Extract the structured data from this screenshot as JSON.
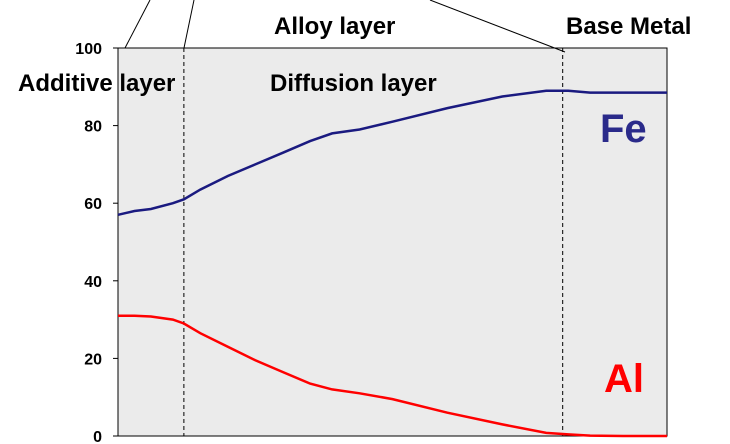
{
  "chart_data": {
    "type": "line",
    "title": "",
    "xlabel": "",
    "ylabel": "",
    "ylim": [
      0,
      100
    ],
    "xlim": [
      0,
      100
    ],
    "y_ticks": [
      "0",
      "20",
      "40",
      "60",
      "80",
      "100"
    ],
    "grid": false,
    "background": "#ebebeb",
    "series": [
      {
        "name": "Fe",
        "color": "#1a1a80",
        "x": [
          0,
          3,
          6,
          10,
          12,
          15,
          20,
          25,
          30,
          35,
          39,
          44,
          50,
          60,
          70,
          78,
          82,
          86,
          92,
          100
        ],
        "y": [
          57,
          58,
          58.5,
          60,
          61,
          63.5,
          67,
          70,
          73,
          76,
          78,
          79,
          81,
          84.5,
          87.5,
          89,
          89,
          88.5,
          88.5,
          88.5
        ]
      },
      {
        "name": "Al",
        "color": "#ff0000",
        "x": [
          0,
          3,
          6,
          10,
          12,
          15,
          20,
          25,
          30,
          35,
          39,
          44,
          50,
          60,
          70,
          78,
          82,
          86,
          92,
          100
        ],
        "y": [
          31,
          31,
          30.8,
          30,
          29,
          26.5,
          23,
          19.5,
          16.5,
          13.5,
          12,
          11,
          9.5,
          6,
          3,
          0.8,
          0.4,
          0.1,
          0,
          0
        ]
      }
    ],
    "boundaries": [
      {
        "x": 12,
        "line_from_y": 100
      },
      {
        "x": 81,
        "line_from_y": 100
      }
    ],
    "annotations": {
      "additive_layer": "Additive layer",
      "diffusion_layer": "Diffusion layer",
      "alloy_layer": "Alloy layer",
      "base_metal": "Base Metal",
      "fe_label": "Fe",
      "al_label": "Al"
    }
  }
}
